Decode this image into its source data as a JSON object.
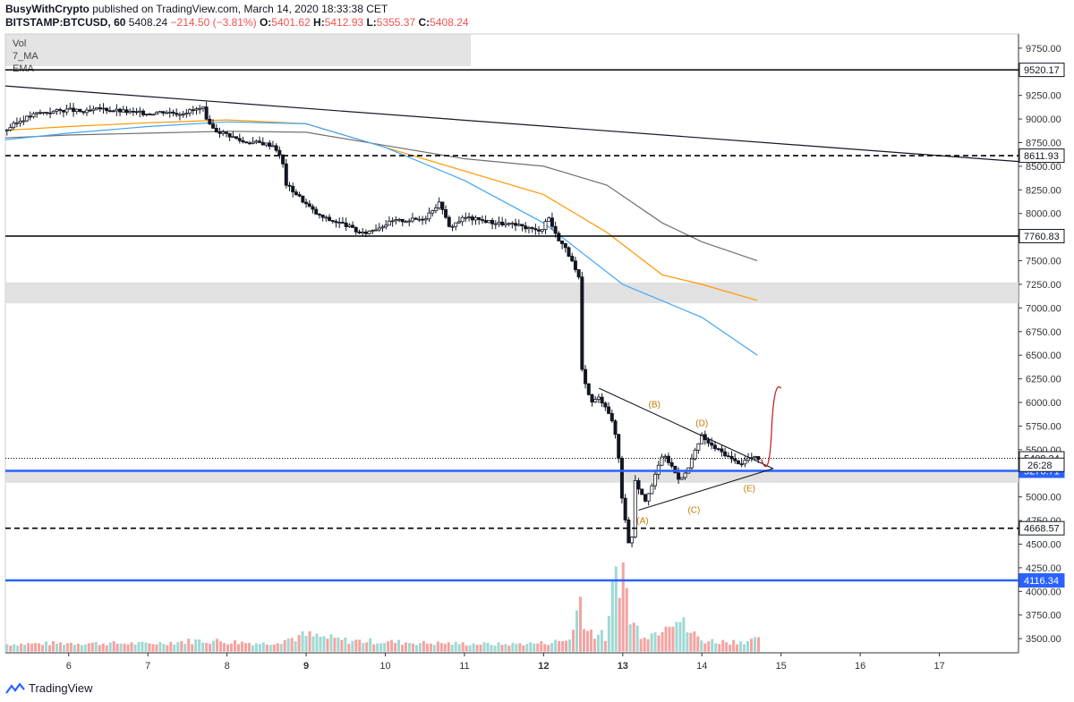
{
  "header": {
    "author": "BusyWithCrypto",
    "published": "published on TradingView.com, March 14, 2020 18:33:38 CET",
    "symbol": "BITSTAMP:BTCUSD, 60",
    "last": "5408.24",
    "change": "−214.50 (−3.81%)",
    "open_label": "O:",
    "open": "5401.62",
    "high_label": "H:",
    "high": "5412.93",
    "low_label": "L:",
    "low": "5355.37",
    "close_label": "C:",
    "close": "5408.24"
  },
  "legend": [
    "Vol",
    "7_MA",
    "EMA"
  ],
  "footer": {
    "brand": "TradingView"
  },
  "colors": {
    "up": "#26a69a",
    "down": "#ef5350",
    "candle": "#131722",
    "ema_blue": "#42a5f5",
    "ema_orange": "#ff9800",
    "ema_gray": "#707070",
    "level_blue": "#2962ff",
    "wave_label": "#c77a00",
    "projection": "#c62828"
  },
  "chart_data": {
    "type": "candlestick",
    "ylim": [
      3350,
      9900
    ],
    "y_ticks": [
      3500,
      3750,
      4000,
      4250,
      4500,
      4750,
      5000,
      5250,
      5500,
      5750,
      6000,
      6250,
      6500,
      6750,
      7000,
      7250,
      7500,
      7750,
      8000,
      8250,
      8500,
      8750,
      9000,
      9250,
      9500,
      9750
    ],
    "x_ticks": [
      "6",
      "7",
      "8",
      "9",
      "10",
      "11",
      "12",
      "13",
      "14",
      "15",
      "16",
      "17"
    ],
    "x_range": [
      5.2,
      18.0
    ],
    "price_points": [
      [
        5.2,
        8880
      ],
      [
        5.4,
        8990
      ],
      [
        5.6,
        9060
      ],
      [
        5.8,
        9080
      ],
      [
        6.0,
        9100
      ],
      [
        6.2,
        9070
      ],
      [
        6.4,
        9110
      ],
      [
        6.6,
        9090
      ],
      [
        6.8,
        9070
      ],
      [
        7.0,
        9060
      ],
      [
        7.2,
        9080
      ],
      [
        7.4,
        9060
      ],
      [
        7.6,
        9100
      ],
      [
        7.7,
        9110
      ],
      [
        7.75,
        8950
      ],
      [
        7.85,
        8880
      ],
      [
        8.0,
        8840
      ],
      [
        8.2,
        8760
      ],
      [
        8.4,
        8750
      ],
      [
        8.6,
        8720
      ],
      [
        8.7,
        8550
      ],
      [
        8.75,
        8300
      ],
      [
        8.85,
        8230
      ],
      [
        9.0,
        8100
      ],
      [
        9.15,
        7980
      ],
      [
        9.3,
        7930
      ],
      [
        9.5,
        7880
      ],
      [
        9.7,
        7780
      ],
      [
        9.9,
        7850
      ],
      [
        10.1,
        7920
      ],
      [
        10.3,
        7930
      ],
      [
        10.5,
        7950
      ],
      [
        10.6,
        8050
      ],
      [
        10.7,
        8120
      ],
      [
        10.8,
        7850
      ],
      [
        11.0,
        7960
      ],
      [
        11.2,
        7930
      ],
      [
        11.4,
        7900
      ],
      [
        11.6,
        7880
      ],
      [
        11.8,
        7850
      ],
      [
        11.9,
        7820
      ],
      [
        12.0,
        7850
      ],
      [
        12.05,
        7990
      ],
      [
        12.15,
        7780
      ],
      [
        12.3,
        7600
      ],
      [
        12.4,
        7400
      ],
      [
        12.45,
        7300
      ],
      [
        12.47,
        6400
      ],
      [
        12.52,
        6200
      ],
      [
        12.6,
        6000
      ],
      [
        12.7,
        6050
      ],
      [
        12.8,
        5950
      ],
      [
        12.9,
        5700
      ],
      [
        12.95,
        5400
      ],
      [
        13.0,
        4900
      ],
      [
        13.05,
        4700
      ],
      [
        13.1,
        4300
      ],
      [
        13.15,
        5200
      ],
      [
        13.2,
        5100
      ],
      [
        13.3,
        4950
      ],
      [
        13.4,
        5200
      ],
      [
        13.5,
        5450
      ],
      [
        13.6,
        5350
      ],
      [
        13.7,
        5200
      ],
      [
        13.8,
        5250
      ],
      [
        13.9,
        5450
      ],
      [
        14.0,
        5650
      ],
      [
        14.1,
        5550
      ],
      [
        14.2,
        5500
      ],
      [
        14.3,
        5450
      ],
      [
        14.4,
        5380
      ],
      [
        14.5,
        5360
      ],
      [
        14.6,
        5420
      ],
      [
        14.7,
        5408
      ]
    ],
    "volume_points": [
      [
        5.2,
        3460
      ],
      [
        6.0,
        3480
      ],
      [
        7.0,
        3470
      ],
      [
        7.7,
        3520
      ],
      [
        8.5,
        3470
      ],
      [
        8.8,
        3550
      ],
      [
        9.0,
        3600
      ],
      [
        9.5,
        3520
      ],
      [
        10.0,
        3500
      ],
      [
        10.5,
        3480
      ],
      [
        11.0,
        3470
      ],
      [
        11.5,
        3460
      ],
      [
        12.0,
        3480
      ],
      [
        12.3,
        3520
      ],
      [
        12.4,
        3720
      ],
      [
        12.45,
        4280
      ],
      [
        12.5,
        4050
      ],
      [
        12.55,
        3680
      ],
      [
        12.7,
        3620
      ],
      [
        12.8,
        3550
      ],
      [
        12.95,
        4920
      ],
      [
        13.0,
        4650
      ],
      [
        13.1,
        3820
      ],
      [
        13.2,
        3680
      ],
      [
        13.4,
        3620
      ],
      [
        13.55,
        3920
      ],
      [
        13.65,
        3950
      ],
      [
        13.8,
        3700
      ],
      [
        14.0,
        3520
      ],
      [
        14.3,
        3500
      ],
      [
        14.7,
        3520
      ]
    ],
    "ema_blue": [
      [
        5.2,
        8780
      ],
      [
        6.0,
        8850
      ],
      [
        7.0,
        8920
      ],
      [
        8.0,
        8970
      ],
      [
        9.0,
        8950
      ],
      [
        10.0,
        8700
      ],
      [
        11.0,
        8350
      ],
      [
        12.0,
        7900
      ],
      [
        13.0,
        7250
      ],
      [
        14.0,
        6900
      ],
      [
        14.7,
        6500
      ]
    ],
    "ema_orange": [
      [
        5.2,
        8880
      ],
      [
        6.0,
        8920
      ],
      [
        7.0,
        8960
      ],
      [
        8.0,
        8990
      ],
      [
        9.0,
        8950
      ],
      [
        10.0,
        8700
      ],
      [
        11.0,
        8450
      ],
      [
        12.0,
        8200
      ],
      [
        12.8,
        7800
      ],
      [
        13.5,
        7350
      ],
      [
        14.0,
        7250
      ],
      [
        14.7,
        7080
      ]
    ],
    "ema_gray": [
      [
        5.2,
        8800
      ],
      [
        6.0,
        8830
      ],
      [
        7.0,
        8850
      ],
      [
        8.0,
        8870
      ],
      [
        9.0,
        8860
      ],
      [
        10.0,
        8720
      ],
      [
        11.0,
        8580
      ],
      [
        12.0,
        8500
      ],
      [
        12.8,
        8300
      ],
      [
        13.5,
        7900
      ],
      [
        14.0,
        7700
      ],
      [
        14.7,
        7500
      ]
    ],
    "horizontal_levels": [
      {
        "price": 9520.17,
        "style": "solid",
        "color": "#000000",
        "label": "9520.17"
      },
      {
        "price": 8611.93,
        "style": "dashed",
        "color": "#000000",
        "label": "8611.93"
      },
      {
        "price": 7760.83,
        "style": "solid",
        "color": "#000000",
        "label": "7760.83"
      },
      {
        "price": 5408.24,
        "style": "dotted",
        "color": "#000000",
        "label": "5408.24"
      },
      {
        "price": 5276.71,
        "style": "solid",
        "color": "#2962ff",
        "label": "5276.71"
      },
      {
        "price": 4668.57,
        "style": "dashed",
        "color": "#000000",
        "label": "4668.57"
      },
      {
        "price": 4116.34,
        "style": "solid",
        "color": "#2962ff",
        "label": "4116.34"
      }
    ],
    "countdown_label": "26:28",
    "zones": [
      {
        "from": 7050,
        "to": 7270
      },
      {
        "from": 5150,
        "to": 5280
      }
    ],
    "trendline": [
      [
        5.2,
        9350
      ],
      [
        18.0,
        8550
      ]
    ],
    "triangle": {
      "upper": [
        [
          12.7,
          6150
        ],
        [
          14.9,
          5300
        ]
      ],
      "lower": [
        [
          13.2,
          4860
        ],
        [
          14.9,
          5300
        ]
      ]
    },
    "wave_labels": [
      {
        "text": "(B)",
        "x": 13.4,
        "y": 5950
      },
      {
        "text": "(D)",
        "x": 14.0,
        "y": 5750
      },
      {
        "text": "(A)",
        "x": 13.25,
        "y": 4720
      },
      {
        "text": "(C)",
        "x": 13.9,
        "y": 4830
      },
      {
        "text": "(E)",
        "x": 14.6,
        "y": 5060
      }
    ],
    "projection": [
      [
        14.75,
        5400
      ],
      [
        14.85,
        5450
      ],
      [
        14.88,
        5700
      ],
      [
        14.95,
        6000
      ],
      [
        15.0,
        6150
      ]
    ]
  }
}
